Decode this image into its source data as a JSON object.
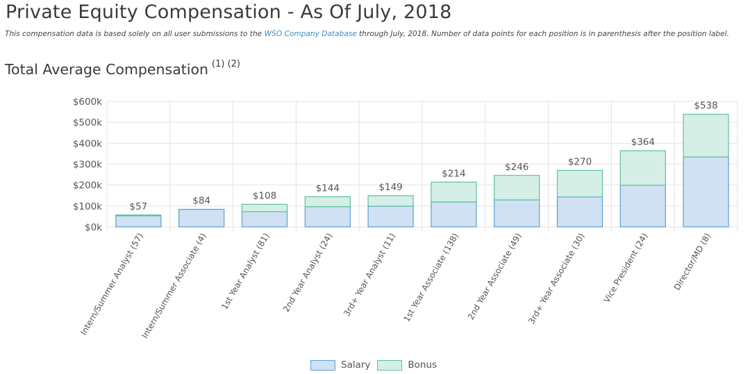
{
  "header": {
    "title": "Private Equity Compensation - As Of July, 2018",
    "note_before": "This compensation data is based solely on all user submissions to the ",
    "note_link": "WSO Company Database",
    "note_after": " through July, 2018. Number of data points for each position is in parenthesis after the position label.",
    "section_title": "Total Average Compensation",
    "section_footnotes": "(1) (2)"
  },
  "colors": {
    "salary_fill": "#cfe1f2",
    "salary_stroke": "#5a9fd4",
    "bonus_fill": "#d5efe7",
    "bonus_stroke": "#5bc0a0",
    "grid": "#e3e3e3",
    "axis_text": "#555555"
  },
  "legend": [
    {
      "label": "Salary",
      "key": "salary"
    },
    {
      "label": "Bonus",
      "key": "bonus"
    }
  ],
  "chart_data": {
    "type": "bar",
    "stacked": true,
    "title": "Total Average Compensation",
    "categories": [
      "Intern/Summer Analyst (57)",
      "Intern/Summer Associate (4)",
      "1st Year Analyst (81)",
      "2nd Year Analyst (24)",
      "3rd+ Year Analyst (11)",
      "1st Year Associate (138)",
      "2nd Year Associate (49)",
      "3rd+ Year Associate (30)",
      "Vice President (24)",
      "Director/MD (8)"
    ],
    "series": [
      {
        "name": "Salary",
        "values": [
          53,
          84,
          73,
          97,
          99,
          119,
          129,
          143,
          199,
          334
        ]
      },
      {
        "name": "Bonus",
        "values": [
          4,
          0,
          35,
          47,
          50,
          95,
          117,
          127,
          165,
          204
        ]
      }
    ],
    "total_labels": [
      "$57",
      "$84",
      "$108",
      "$144",
      "$149",
      "$214",
      "$246",
      "$270",
      "$364",
      "$538"
    ],
    "ylim": [
      0,
      600
    ],
    "yticks": [
      0,
      100,
      200,
      300,
      400,
      500,
      600
    ],
    "ytick_labels": [
      "$0k",
      "$100k",
      "$200k",
      "$300k",
      "$400k",
      "$500k",
      "$600k"
    ],
    "xlabel": "",
    "ylabel": "",
    "legend_position": "bottom-center",
    "grid": true
  }
}
